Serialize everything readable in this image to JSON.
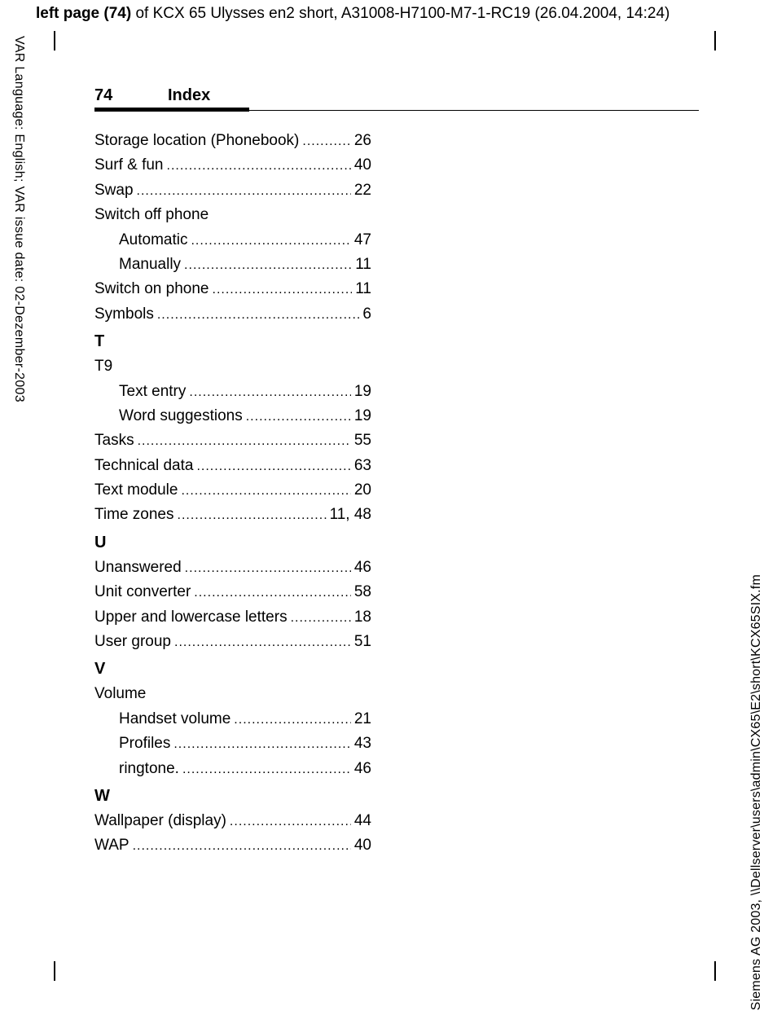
{
  "top_header": {
    "bold": "left page (74)",
    "rest": " of KCX 65 Ulysses en2 short, A31008-H7100-M7-1-RC19 (26.04.2004, 14:24)"
  },
  "page": {
    "number": "74",
    "title": "Index"
  },
  "left_margin": "VAR Language: English; VAR issue date: 02-Dezember-2003",
  "right_margin": "Siemens AG 2003, \\\\Dellserver\\users\\admin\\CX65\\E2\\short\\KCX65SIX.fm",
  "sections": [
    {
      "type": "entry",
      "label": "Storage location (Phonebook)",
      "page": "26"
    },
    {
      "type": "entry",
      "label": "Surf & fun",
      "page": "40"
    },
    {
      "type": "entry",
      "label": "Swap",
      "page": "22"
    },
    {
      "type": "entry",
      "label": "Switch off phone",
      "nodots": true
    },
    {
      "type": "sub",
      "label": "Automatic",
      "page": "47"
    },
    {
      "type": "sub",
      "label": "Manually",
      "page": "11"
    },
    {
      "type": "entry",
      "label": "Switch on phone",
      "page": "11"
    },
    {
      "type": "entry",
      "label": "Symbols",
      "page": "6"
    },
    {
      "type": "letter",
      "label": "T"
    },
    {
      "type": "entry",
      "label": "T9",
      "nodots": true
    },
    {
      "type": "sub",
      "label": "Text entry",
      "page": "19"
    },
    {
      "type": "sub",
      "label": "Word suggestions",
      "page": "19"
    },
    {
      "type": "entry",
      "label": "Tasks",
      "page": "55"
    },
    {
      "type": "entry",
      "label": "Technical data",
      "page": "63"
    },
    {
      "type": "entry",
      "label": "Text module",
      "page": "20"
    },
    {
      "type": "entry",
      "label": "Time zones",
      "page": "11, 48"
    },
    {
      "type": "letter",
      "label": "U"
    },
    {
      "type": "entry",
      "label": "Unanswered",
      "page": "46"
    },
    {
      "type": "entry",
      "label": "Unit converter",
      "page": "58"
    },
    {
      "type": "entry",
      "label": "Upper and lowercase letters",
      "page": "18"
    },
    {
      "type": "entry",
      "label": "User group",
      "page": "51"
    },
    {
      "type": "letter",
      "label": "V"
    },
    {
      "type": "entry",
      "label": "Volume",
      "nodots": true
    },
    {
      "type": "sub",
      "label": "Handset volume",
      "page": "21"
    },
    {
      "type": "sub",
      "label": "Profiles",
      "page": "43"
    },
    {
      "type": "sub",
      "label": "ringtone.",
      "page": "46"
    },
    {
      "type": "letter",
      "label": "W"
    },
    {
      "type": "entry",
      "label": "Wallpaper (display)",
      "page": "44"
    },
    {
      "type": "entry",
      "label": "WAP",
      "page": "40"
    }
  ]
}
